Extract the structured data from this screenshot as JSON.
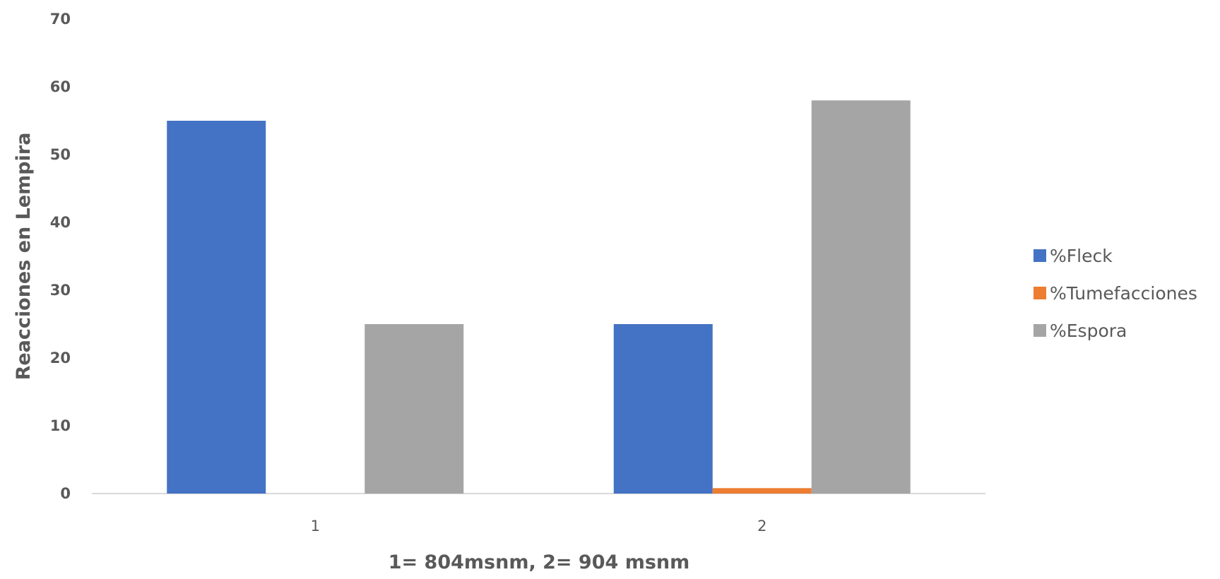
{
  "chart_data": {
    "type": "bar",
    "categories": [
      "1",
      "2"
    ],
    "series": [
      {
        "name": "%Fleck",
        "values": [
          55,
          25
        ],
        "color": "#4472C4"
      },
      {
        "name": "%Tumefacciones",
        "values": [
          0,
          0.8
        ],
        "color": "#ED7D31"
      },
      {
        "name": "%Espora",
        "values": [
          25,
          58
        ],
        "color": "#A5A5A5"
      }
    ],
    "title": "",
    "xlabel": "1= 804msnm, 2= 904 msnm",
    "ylabel": "Reacciones en Lempira",
    "ylim": [
      0,
      70
    ],
    "yticks": [
      0,
      10,
      20,
      30,
      40,
      50,
      60,
      70
    ],
    "grid": false,
    "legend": "right"
  }
}
